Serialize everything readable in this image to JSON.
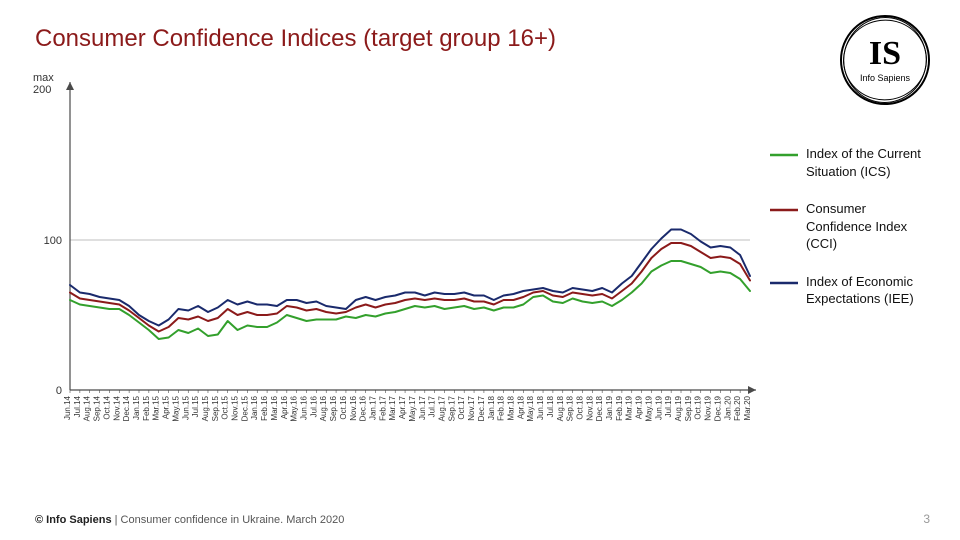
{
  "title": "Consumer Confidence Indices (target group 16+)",
  "logo": {
    "initials": "IS",
    "name": "Info Sapiens"
  },
  "chart": {
    "type": "line",
    "background_color": "#ffffff",
    "grid_color": "#bfbfbf",
    "axis_color": "#4a4a4a",
    "ymax_label": "max\n200",
    "ylim": [
      0,
      200
    ],
    "yticks": [
      0,
      100
    ],
    "x_labels": [
      "Jun.14",
      "Jul.14",
      "Aug.14",
      "Sep.14",
      "Oct.14",
      "Nov.14",
      "Dec.14",
      "Jan.15",
      "Feb.15",
      "Mar.15",
      "Apr.15",
      "May.15",
      "Jun.15",
      "Jul.15",
      "Aug.15",
      "Sep.15",
      "Oct.15",
      "Nov.15",
      "Dec.15",
      "Jan.16",
      "Feb.16",
      "Mar.16",
      "Apr.16",
      "May.16",
      "Jun.16",
      "Jul.16",
      "Aug.16",
      "Sep.16",
      "Oct.16",
      "Nov.16",
      "Dec.16",
      "Jan.17",
      "Feb.17",
      "Mar.17",
      "Apr.17",
      "May.17",
      "Jun.17",
      "Jul.17",
      "Aug.17",
      "Sep.17",
      "Oct.17",
      "Nov.17",
      "Dec.17",
      "Jan.18",
      "Feb.18",
      "Mar.18",
      "Apr.18",
      "May.18",
      "Jun.18",
      "Jul.18",
      "Aug.18",
      "Sep.18",
      "Oct.18",
      "Nov.18",
      "Dec.18",
      "Jan.19",
      "Feb.19",
      "Mar.19",
      "Apr.19",
      "May.19",
      "Jun.19",
      "Jul.19",
      "Aug.19",
      "Sep.19",
      "Oct.19",
      "Nov.19",
      "Dec.19",
      "Jan.20",
      "Feb.20",
      "Mar.20"
    ],
    "line_width": 2,
    "series": [
      {
        "name": "Index of the Current Situation (ICS)",
        "color": "#33a02c",
        "values": [
          60,
          57,
          56,
          55,
          54,
          54,
          50,
          45,
          40,
          34,
          35,
          40,
          38,
          41,
          36,
          37,
          46,
          40,
          43,
          42,
          42,
          45,
          50,
          48,
          46,
          47,
          47,
          47,
          49,
          48,
          50,
          49,
          51,
          52,
          54,
          56,
          55,
          56,
          54,
          55,
          56,
          54,
          55,
          53,
          55,
          55,
          57,
          62,
          63,
          59,
          58,
          61,
          59,
          58,
          59,
          56,
          60,
          65,
          71,
          79,
          83,
          86,
          86,
          84,
          82,
          78,
          79,
          78,
          74,
          66
        ]
      },
      {
        "name": "Consumer Confidence Index (CCI)",
        "color": "#8b1a1a",
        "values": [
          65,
          61,
          60,
          59,
          58,
          57,
          53,
          48,
          43,
          39,
          42,
          48,
          47,
          49,
          46,
          48,
          54,
          50,
          52,
          50,
          50,
          51,
          56,
          55,
          53,
          54,
          52,
          51,
          52,
          55,
          57,
          55,
          57,
          58,
          60,
          61,
          60,
          61,
          60,
          60,
          61,
          59,
          59,
          57,
          60,
          60,
          62,
          65,
          66,
          63,
          62,
          65,
          64,
          63,
          64,
          61,
          66,
          71,
          79,
          88,
          94,
          98,
          98,
          96,
          92,
          88,
          89,
          88,
          84,
          73
        ]
      },
      {
        "name": "Index of Economic Expectations (IEE)",
        "color": "#1a2a6c",
        "values": [
          70,
          65,
          64,
          62,
          61,
          60,
          56,
          50,
          46,
          43,
          47,
          54,
          53,
          56,
          52,
          55,
          60,
          57,
          59,
          57,
          57,
          56,
          60,
          60,
          58,
          59,
          56,
          55,
          54,
          60,
          62,
          60,
          62,
          63,
          65,
          65,
          63,
          65,
          64,
          64,
          65,
          63,
          63,
          60,
          63,
          64,
          66,
          67,
          68,
          66,
          65,
          68,
          67,
          66,
          68,
          65,
          71,
          76,
          85,
          94,
          101,
          107,
          107,
          104,
          99,
          95,
          96,
          95,
          90,
          76
        ]
      }
    ]
  },
  "legend": [
    {
      "label": "Index of the Current Situation (ICS)",
      "color": "#33a02c"
    },
    {
      "label": "Consumer Confidence Index (CCI)",
      "color": "#8b1a1a"
    },
    {
      "label": "Index of Economic Expectations (IEE)",
      "color": "#1a2a6c"
    }
  ],
  "footer": {
    "brand": "© Info Sapiens",
    "text": " | Consumer confidence in Ukraine. March 2020"
  },
  "page_number": "3",
  "typography": {
    "title_fontsize": 24,
    "title_color": "#8b1a1a",
    "axis_fontsize": 11,
    "tick_fontsize": 8,
    "legend_fontsize": 13
  }
}
